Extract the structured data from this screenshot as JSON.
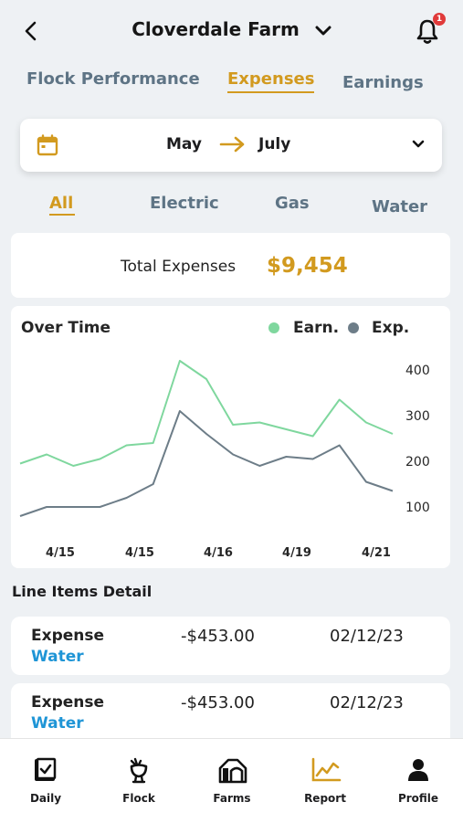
{
  "header": {
    "farm_name": "Cloverdale Farm",
    "notification_count": "1"
  },
  "tabs": [
    "Flock Performance",
    "Expenses",
    "Earnings"
  ],
  "active_tab": "Expenses",
  "date_range": {
    "from": "May",
    "to": "July"
  },
  "filters": [
    "All",
    "Electric",
    "Gas",
    "Water"
  ],
  "active_filter": "All",
  "total": {
    "label": "Total Expenses",
    "value": "$9,454"
  },
  "chart_data": {
    "type": "line",
    "title": "Over Time",
    "x_tick_labels": [
      "4/15",
      "4/15",
      "4/16",
      "4/19",
      "4/21"
    ],
    "y_ticks": [
      100,
      200,
      300,
      400
    ],
    "ylim": [
      60,
      430
    ],
    "y_axis_side": "right",
    "legend_placement": "top-right",
    "series": [
      {
        "name": "Earn.",
        "color": "#7fd79e",
        "values": [
          195,
          215,
          190,
          205,
          235,
          240,
          420,
          380,
          280,
          285,
          270,
          255,
          335,
          285,
          260
        ]
      },
      {
        "name": "Exp.",
        "color": "#6d7d88",
        "values": [
          80,
          100,
          100,
          100,
          120,
          150,
          310,
          260,
          215,
          190,
          210,
          205,
          235,
          155,
          135
        ]
      }
    ]
  },
  "line_items": {
    "title": "Line Items Detail",
    "items": [
      {
        "type": "Expense",
        "category": "Water",
        "amount": "-$453.00",
        "date": "02/12/23"
      },
      {
        "type": "Expense",
        "category": "Water",
        "amount": "-$453.00",
        "date": "02/12/23"
      }
    ]
  },
  "nav": [
    {
      "label": "Daily",
      "icon": "daily-icon"
    },
    {
      "label": "Flock",
      "icon": "chicken-icon"
    },
    {
      "label": "Farms",
      "icon": "barn-icon"
    },
    {
      "label": "Report",
      "icon": "chart-icon",
      "active": true
    },
    {
      "label": "Profile",
      "icon": "person-icon"
    }
  ],
  "colors": {
    "accent": "#d29a1f",
    "tab_inactive": "#5e7485",
    "link": "#1f95d6"
  }
}
